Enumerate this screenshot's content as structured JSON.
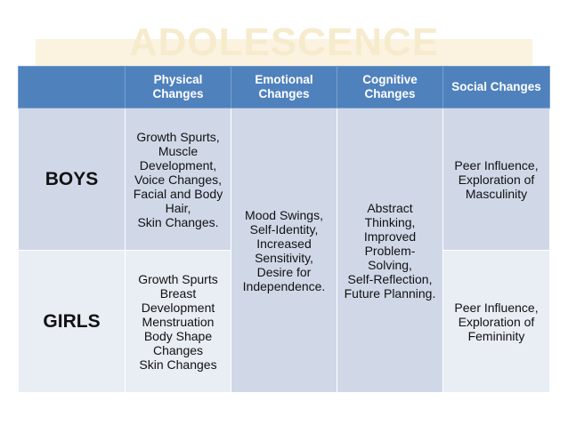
{
  "slide": {
    "title": "ADOLESCENCE"
  },
  "table": {
    "headers": [
      "",
      "Physical Changes",
      "Emotional Changes",
      "Cognitive Changes",
      "Social Changes"
    ],
    "rows": {
      "boys": {
        "label": "BOYS",
        "physical": [
          "Growth Spurts,",
          "Muscle",
          "Development,",
          "Voice Changes,",
          "Facial and Body",
          "Hair,",
          "Skin Changes."
        ],
        "social": [
          "Peer Influence,",
          "Exploration of",
          "Masculinity"
        ]
      },
      "girls": {
        "label": "GIRLS",
        "physical": [
          "Growth Spurts",
          "Breast",
          "Development",
          "Menstruation",
          "Body Shape",
          "Changes",
          "Skin Changes"
        ],
        "social": [
          "Peer Influence,",
          "Exploration of",
          "Femininity"
        ]
      }
    },
    "emotional": [
      "Mood Swings,",
      "Self-Identity,",
      "Increased",
      "Sensitivity,",
      "Desire for",
      "Independence."
    ],
    "cognitive": [
      "Abstract",
      "Thinking,",
      "Improved",
      "Problem-",
      "Solving,",
      "Self-Reflection,",
      "Future Planning."
    ]
  },
  "colors": {
    "header_bg": "#4f81bd",
    "row_dark": "#d0d8e8",
    "row_light": "#e9edf4",
    "title_color": "#f6ebcd"
  }
}
